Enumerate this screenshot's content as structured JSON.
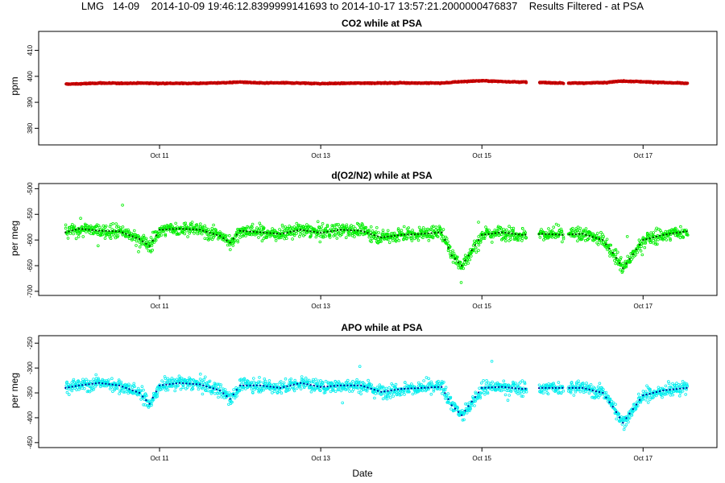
{
  "page": {
    "title": "LMG   14-09    2014-10-09 19:46:12.8399999141693 to 2014-10-17 13:57:21.2000000476837    Results Filtered - at PSA",
    "xlabel": "Date"
  },
  "chart_data": [
    {
      "type": "scatter",
      "title": "CO2 while at PSA",
      "xlabel": "Date",
      "ylabel": "ppm",
      "x_ticks": [
        "Oct 11",
        "Oct 13",
        "Oct 15",
        "Oct 17"
      ],
      "y_ticks": [
        380,
        390,
        400,
        410
      ],
      "ylim": [
        373.6,
        417.3
      ],
      "xlim": [
        "2014-10-09 12:00",
        "2014-10-17 22:00"
      ],
      "grid": false,
      "color": "#cc0000",
      "series": [
        {
          "x": [
            "2014-10-09 20:00",
            "2014-10-10 00:00",
            "2014-10-10 06:00",
            "2014-10-10 12:00",
            "2014-10-10 18:00",
            "2014-10-11 00:00",
            "2014-10-11 06:00",
            "2014-10-11 12:00",
            "2014-10-11 18:00",
            "2014-10-12 00:00",
            "2014-10-12 06:00",
            "2014-10-12 12:00",
            "2014-10-12 18:00",
            "2014-10-13 00:00",
            "2014-10-13 06:00",
            "2014-10-13 12:00",
            "2014-10-13 18:00",
            "2014-10-14 00:00",
            "2014-10-14 06:00",
            "2014-10-14 12:00",
            "2014-10-14 18:00",
            "2014-10-15 00:00",
            "2014-10-15 06:00",
            "2014-10-15 12:00",
            "2014-10-15 18:00",
            "2014-10-16 00:00",
            "2014-10-16 06:00",
            "2014-10-16 12:00",
            "2014-10-16 18:00",
            "2014-10-17 00:00",
            "2014-10-17 06:00",
            "2014-10-17 13:00"
          ],
          "y": [
            397.0,
            397.1,
            397.4,
            397.3,
            397.4,
            397.3,
            397.3,
            397.3,
            397.5,
            397.8,
            397.4,
            397.5,
            397.4,
            397.2,
            397.3,
            397.4,
            397.4,
            397.5,
            397.4,
            397.4,
            398.0,
            398.3,
            398.0,
            397.8,
            397.6,
            397.4,
            397.4,
            397.6,
            398.2,
            397.9,
            397.6,
            397.3
          ]
        }
      ]
    },
    {
      "type": "scatter",
      "title": "d(O2/N2) while at PSA",
      "xlabel": "Date",
      "ylabel": "per meg",
      "x_ticks": [
        "Oct 11",
        "Oct 13",
        "Oct 15",
        "Oct 17"
      ],
      "y_ticks": [
        -700,
        -650,
        -600,
        -550,
        -500
      ],
      "ylim": [
        -708,
        -490
      ],
      "xlim": [
        "2014-10-09 12:00",
        "2014-10-17 22:00"
      ],
      "grid": false,
      "color": "#00ee00",
      "series": [
        {
          "x": [
            "2014-10-09 20:00",
            "2014-10-10 00:00",
            "2014-10-10 06:00",
            "2014-10-10 12:00",
            "2014-10-10 18:00",
            "2014-10-10 21:00",
            "2014-10-11 00:00",
            "2014-10-11 06:00",
            "2014-10-11 12:00",
            "2014-10-11 18:00",
            "2014-10-11 21:00",
            "2014-10-12 00:00",
            "2014-10-12 06:00",
            "2014-10-12 12:00",
            "2014-10-12 18:00",
            "2014-10-13 00:00",
            "2014-10-13 06:00",
            "2014-10-13 12:00",
            "2014-10-13 18:00",
            "2014-10-14 00:00",
            "2014-10-14 06:00",
            "2014-10-14 12:00",
            "2014-10-14 15:00",
            "2014-10-14 18:00",
            "2014-10-15 00:00",
            "2014-10-15 06:00",
            "2014-10-15 12:00",
            "2014-10-15 18:00",
            "2014-10-16 00:00",
            "2014-10-16 06:00",
            "2014-10-16 12:00",
            "2014-10-16 15:00",
            "2014-10-16 18:00",
            "2014-10-17 00:00",
            "2014-10-17 06:00",
            "2014-10-17 13:00"
          ],
          "y": [
            -585,
            -578,
            -582,
            -583,
            -598,
            -612,
            -580,
            -578,
            -580,
            -592,
            -605,
            -582,
            -585,
            -588,
            -580,
            -586,
            -580,
            -582,
            -595,
            -590,
            -588,
            -585,
            -630,
            -650,
            -590,
            -585,
            -590,
            -588,
            -590,
            -588,
            -600,
            -625,
            -655,
            -600,
            -590,
            -583
          ]
        }
      ]
    },
    {
      "type": "scatter",
      "title": "APO while at PSA",
      "xlabel": "Date",
      "ylabel": "per meg",
      "x_ticks": [
        "Oct 11",
        "Oct 13",
        "Oct 15",
        "Oct 17"
      ],
      "y_ticks": [
        -450,
        -400,
        -350,
        -300,
        -250
      ],
      "ylim": [
        -460,
        -235
      ],
      "xlim": [
        "2014-10-09 12:00",
        "2014-10-17 22:00"
      ],
      "grid": false,
      "color": "#00eeee",
      "series": [
        {
          "x": [
            "2014-10-09 20:00",
            "2014-10-10 00:00",
            "2014-10-10 06:00",
            "2014-10-10 12:00",
            "2014-10-10 18:00",
            "2014-10-10 21:00",
            "2014-10-11 00:00",
            "2014-10-11 06:00",
            "2014-10-11 12:00",
            "2014-10-11 18:00",
            "2014-10-11 21:00",
            "2014-10-12 00:00",
            "2014-10-12 06:00",
            "2014-10-12 12:00",
            "2014-10-12 18:00",
            "2014-10-13 00:00",
            "2014-10-13 06:00",
            "2014-10-13 12:00",
            "2014-10-13 18:00",
            "2014-10-14 00:00",
            "2014-10-14 06:00",
            "2014-10-14 12:00",
            "2014-10-14 15:00",
            "2014-10-14 18:00",
            "2014-10-15 00:00",
            "2014-10-15 06:00",
            "2014-10-15 12:00",
            "2014-10-15 18:00",
            "2014-10-16 00:00",
            "2014-10-16 06:00",
            "2014-10-16 12:00",
            "2014-10-16 15:00",
            "2014-10-16 18:00",
            "2014-10-17 00:00",
            "2014-10-17 06:00",
            "2014-10-17 13:00"
          ],
          "y": [
            -340,
            -335,
            -330,
            -335,
            -350,
            -372,
            -335,
            -330,
            -333,
            -345,
            -362,
            -335,
            -335,
            -340,
            -330,
            -338,
            -335,
            -335,
            -348,
            -342,
            -340,
            -338,
            -375,
            -395,
            -340,
            -338,
            -342,
            -340,
            -340,
            -340,
            -350,
            -378,
            -410,
            -355,
            -345,
            -340
          ]
        }
      ]
    }
  ]
}
